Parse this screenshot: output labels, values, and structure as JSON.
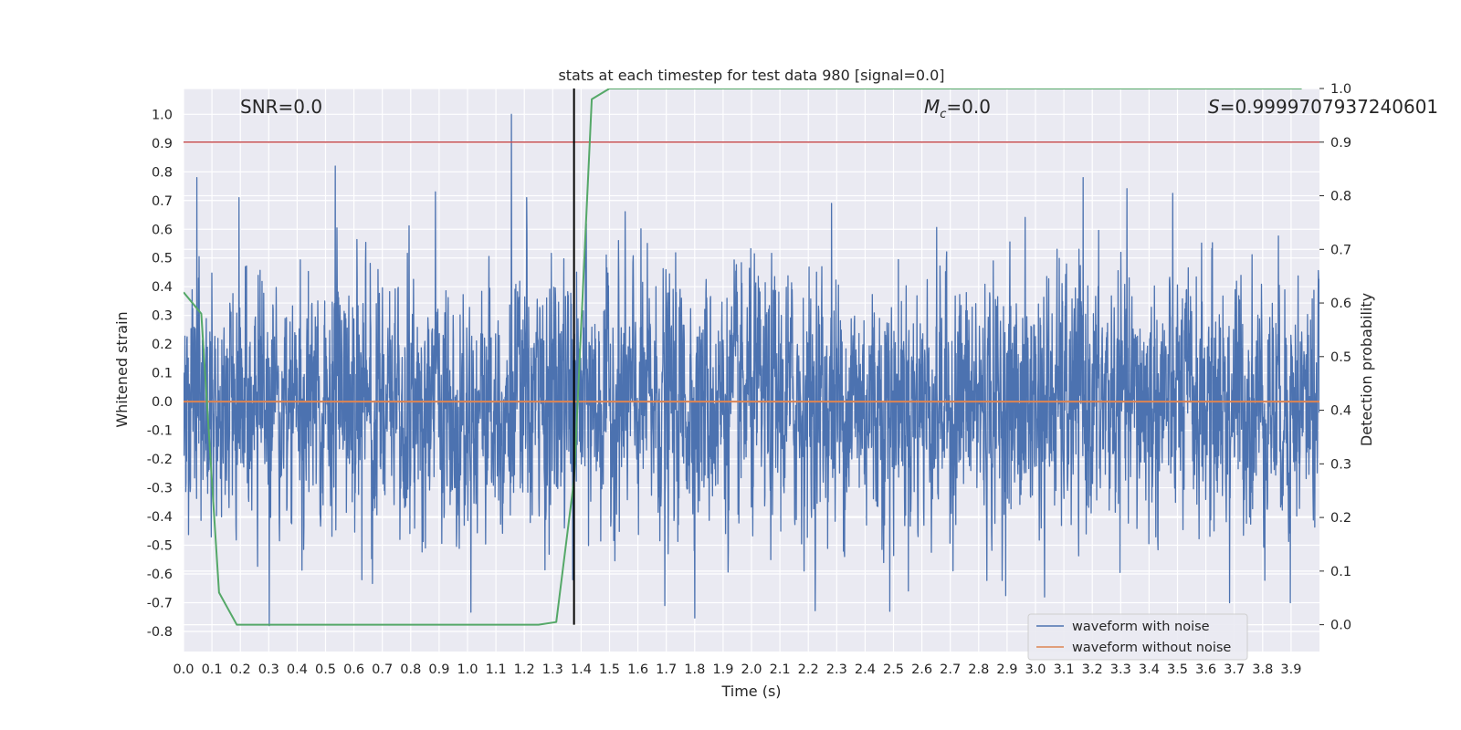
{
  "chart_data": {
    "type": "line",
    "title": "stats at each timestep for test data 980 [signal=0.0]",
    "xlabel": "Time (s)",
    "ylabel": "Whitened strain",
    "y2label": "Detection probability",
    "xlim": [
      0.0,
      4.0
    ],
    "ylim": [
      -0.87,
      1.09
    ],
    "y2lim": [
      -0.05,
      1.0
    ],
    "x_ticks": [
      "0.0",
      "0.1",
      "0.2",
      "0.3",
      "0.4",
      "0.5",
      "0.6",
      "0.7",
      "0.8",
      "0.9",
      "1.0",
      "1.1",
      "1.2",
      "1.3",
      "1.4",
      "1.5",
      "1.6",
      "1.7",
      "1.8",
      "1.9",
      "2.0",
      "2.1",
      "2.2",
      "2.3",
      "2.4",
      "2.5",
      "2.6",
      "2.7",
      "2.8",
      "2.9",
      "3.0",
      "3.1",
      "3.2",
      "3.3",
      "3.4",
      "3.5",
      "3.6",
      "3.7",
      "3.8",
      "3.9"
    ],
    "y_ticks": [
      "-0.8",
      "-0.7",
      "-0.6",
      "-0.5",
      "-0.4",
      "-0.3",
      "-0.2",
      "-0.1",
      "0.0",
      "0.1",
      "0.2",
      "0.3",
      "0.4",
      "0.5",
      "0.6",
      "0.7",
      "0.8",
      "0.9",
      "1.0"
    ],
    "y2_ticks": [
      "0.0",
      "0.1",
      "0.2",
      "0.3",
      "0.4",
      "0.5",
      "0.6",
      "0.7",
      "0.8",
      "0.9",
      "1.0"
    ],
    "grid": true,
    "legend_position": "lower-right",
    "annotations": {
      "snr": "SNR=0.0",
      "mc_symbol": "M",
      "mc_subscript": "c",
      "mc_value": "=0.0",
      "s_symbol": "S",
      "s_value": "=0.9999707937240601"
    },
    "threshold_line": {
      "axis": "right",
      "value": 0.9,
      "color": "#c44e52"
    },
    "vertical_marker": {
      "x": 1.375,
      "color": "#000000"
    },
    "noise_profile": {
      "n_samples": 4096,
      "typical_amplitude": 0.28,
      "peak_samples": [
        {
          "x": 0.047,
          "y": 0.78
        },
        {
          "x": 0.195,
          "y": 0.71
        },
        {
          "x": 0.302,
          "y": -0.78
        },
        {
          "x": 0.534,
          "y": 0.82
        },
        {
          "x": 0.628,
          "y": -0.62
        },
        {
          "x": 0.887,
          "y": 0.73
        },
        {
          "x": 1.155,
          "y": 1.0
        },
        {
          "x": 1.208,
          "y": 0.71
        },
        {
          "x": 1.37,
          "y": -0.62
        },
        {
          "x": 1.695,
          "y": -0.71
        },
        {
          "x": 2.282,
          "y": 0.69
        },
        {
          "x": 2.487,
          "y": -0.73
        },
        {
          "x": 3.032,
          "y": -0.68
        },
        {
          "x": 3.168,
          "y": 0.78
        },
        {
          "x": 3.684,
          "y": -0.7
        },
        {
          "x": 3.897,
          "y": -0.7
        }
      ]
    },
    "series": [
      {
        "name": "waveform with noise",
        "axis": "left",
        "color": "#4c72b0",
        "style": "dense-noise"
      },
      {
        "name": "waveform without noise",
        "axis": "left",
        "color": "#dd8452",
        "x": [
          0.0,
          4.0
        ],
        "y": [
          0.0,
          0.0
        ]
      },
      {
        "name": "",
        "axis": "right",
        "color": "#55a868",
        "x": [
          0.0,
          0.0625,
          0.125,
          0.1875,
          0.25,
          0.3125,
          0.375,
          0.4375,
          0.5,
          0.5625,
          0.625,
          0.6875,
          0.75,
          0.8125,
          0.875,
          0.9375,
          1.0,
          1.0625,
          1.125,
          1.1875,
          1.25,
          1.3125,
          1.375,
          1.4375,
          1.5,
          1.5625,
          1.625,
          1.6875,
          1.75,
          1.8125,
          1.875,
          1.9375,
          2.0,
          2.0625,
          2.125,
          2.1875,
          2.25,
          2.3125,
          2.375,
          2.4375,
          2.5,
          2.5625,
          2.625,
          2.6875,
          2.75,
          2.8125,
          2.875,
          2.9375,
          3.0,
          3.0625,
          3.125,
          3.1875,
          3.25,
          3.3125,
          3.375,
          3.4375,
          3.5,
          3.5625,
          3.625,
          3.6875,
          3.75,
          3.8125,
          3.875,
          3.9375
        ],
        "y": [
          0.62,
          0.58,
          0.06,
          0.0,
          0.0,
          0.0,
          0.0,
          0.0,
          0.0,
          0.0,
          0.0,
          0.0,
          0.0,
          0.0,
          0.0,
          0.0,
          0.0,
          0.0,
          0.0,
          0.0,
          0.0,
          0.005,
          0.27,
          0.98,
          1.0,
          1.0,
          1.0,
          1.0,
          1.0,
          1.0,
          1.0,
          1.0,
          1.0,
          1.0,
          1.0,
          1.0,
          1.0,
          1.0,
          1.0,
          1.0,
          1.0,
          1.0,
          1.0,
          1.0,
          1.0,
          1.0,
          1.0,
          1.0,
          1.0,
          1.0,
          1.0,
          1.0,
          1.0,
          1.0,
          1.0,
          1.0,
          1.0,
          1.0,
          1.0,
          1.0,
          1.0,
          1.0,
          1.0,
          1.0
        ]
      }
    ]
  }
}
